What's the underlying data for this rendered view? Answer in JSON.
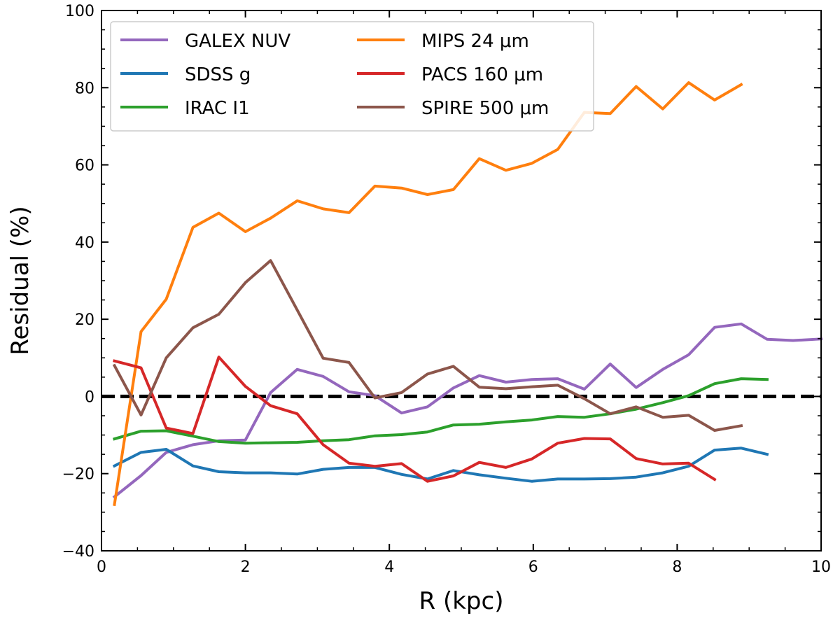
{
  "chart_data": {
    "type": "line",
    "title": "",
    "xlabel": "R (kpc)",
    "ylabel": "Residual (%)",
    "xlim": [
      0,
      10
    ],
    "ylim": [
      -40,
      100
    ],
    "xticks": [
      0,
      2,
      4,
      6,
      8,
      10
    ],
    "yticks": [
      -40,
      -20,
      0,
      20,
      40,
      60,
      80,
      100
    ],
    "xtick_labels": [
      "0",
      "2",
      "4",
      "6",
      "8",
      "10"
    ],
    "ytick_labels": [
      "−40",
      "−20",
      "0",
      "20",
      "40",
      "60",
      "80",
      "100"
    ],
    "grid": false,
    "legend_position": "upper-left",
    "reference_line": {
      "y": 0,
      "style": "dashed",
      "color": "#000000"
    },
    "series": [
      {
        "name": "GALEX NUV",
        "color": "#9467bd",
        "x": [
          0.18,
          0.55,
          0.9,
          1.27,
          1.63,
          2.0,
          2.35,
          2.72,
          3.08,
          3.44,
          3.8,
          4.17,
          4.53,
          4.89,
          5.25,
          5.62,
          5.98,
          6.34,
          6.71,
          7.07,
          7.43,
          7.8,
          8.16,
          8.52,
          8.89,
          9.25,
          9.61,
          10.0
        ],
        "y": [
          -26,
          -20.5,
          -14.5,
          -12.5,
          -11.5,
          -11.3,
          1,
          7,
          5.2,
          1.2,
          0.2,
          -4.3,
          -2.7,
          2.2,
          5.4,
          3.7,
          4.4,
          4.6,
          1.9,
          8.4,
          2.3,
          7,
          10.8,
          17.9,
          18.8,
          14.8,
          14.5,
          14.9
        ]
      },
      {
        "name": "SDSS g",
        "color": "#1f77b4",
        "x": [
          0.18,
          0.55,
          0.9,
          1.27,
          1.63,
          2.0,
          2.35,
          2.72,
          3.08,
          3.44,
          3.8,
          4.17,
          4.53,
          4.89,
          5.25,
          5.62,
          5.98,
          6.34,
          6.71,
          7.07,
          7.43,
          7.8,
          8.16,
          8.52,
          8.89,
          9.25
        ],
        "y": [
          -18,
          -14.5,
          -13.7,
          -18,
          -19.5,
          -19.8,
          -19.8,
          -20.1,
          -18.9,
          -18.4,
          -18.4,
          -20.2,
          -21.4,
          -19.2,
          -20.3,
          -21.2,
          -22,
          -21.4,
          -21.4,
          -21.3,
          -20.9,
          -19.8,
          -18.1,
          -13.9,
          -13.4,
          -15
        ]
      },
      {
        "name": "IRAC I1",
        "color": "#2ca02c",
        "x": [
          0.18,
          0.55,
          0.9,
          1.27,
          1.63,
          2.0,
          2.35,
          2.72,
          3.08,
          3.44,
          3.8,
          4.17,
          4.53,
          4.89,
          5.25,
          5.62,
          5.98,
          6.34,
          6.71,
          7.07,
          7.43,
          7.8,
          8.16,
          8.52,
          8.89,
          9.25
        ],
        "y": [
          -11,
          -9,
          -8.9,
          -10.3,
          -11.7,
          -12.1,
          -12,
          -11.9,
          -11.5,
          -11.2,
          -10.2,
          -9.9,
          -9.2,
          -7.4,
          -7.2,
          -6.6,
          -6.1,
          -5.2,
          -5.4,
          -4.5,
          -3.3,
          -1.6,
          0.2,
          3.3,
          4.6,
          4.4
        ]
      },
      {
        "name": "MIPS 24 μm",
        "color": "#ff7f0e",
        "x": [
          0.18,
          0.55,
          0.9,
          1.27,
          1.63,
          2.0,
          2.35,
          2.72,
          3.08,
          3.44,
          3.8,
          4.17,
          4.53,
          4.89,
          5.25,
          5.62,
          5.98,
          6.34,
          6.71,
          7.07,
          7.43,
          7.8,
          8.16,
          8.52,
          8.89
        ],
        "y": [
          -28,
          16.8,
          25.2,
          43.8,
          47.5,
          42.7,
          46.2,
          50.7,
          48.6,
          47.6,
          54.5,
          54,
          52.3,
          53.6,
          61.6,
          58.6,
          60.4,
          64,
          73.6,
          73.3,
          80.3,
          74.5,
          81.3,
          76.8,
          80.8
        ]
      },
      {
        "name": "PACS 160 μm",
        "color": "#d62728",
        "x": [
          0.18,
          0.55,
          0.9,
          1.27,
          1.63,
          2.0,
          2.35,
          2.72,
          3.08,
          3.44,
          3.8,
          4.17,
          4.53,
          4.89,
          5.25,
          5.62,
          5.98,
          6.34,
          6.71,
          7.07,
          7.43,
          7.8,
          8.16,
          8.52
        ],
        "y": [
          9.2,
          7.4,
          -8.2,
          -9.6,
          10.2,
          2.6,
          -2.4,
          -4.5,
          -12.5,
          -17.3,
          -18.1,
          -17.4,
          -22,
          -20.6,
          -17.1,
          -18.4,
          -16.2,
          -12.1,
          -10.9,
          -11,
          -16.1,
          -17.5,
          -17.3,
          -21.5
        ]
      },
      {
        "name": "SPIRE 500 μm",
        "color": "#8c564b",
        "x": [
          0.18,
          0.55,
          0.9,
          1.27,
          1.63,
          2.0,
          2.35,
          2.72,
          3.08,
          3.44,
          3.8,
          4.17,
          4.53,
          4.89,
          5.25,
          5.62,
          5.98,
          6.34,
          6.71,
          7.07,
          7.43,
          7.8,
          8.16,
          8.52,
          8.89
        ],
        "y": [
          8,
          -4.8,
          10,
          17.8,
          21.3,
          29.5,
          35.2,
          22.4,
          9.9,
          8.8,
          -0.4,
          1,
          5.8,
          7.8,
          2.4,
          2,
          2.5,
          2.9,
          -0.6,
          -4.5,
          -2.7,
          -5.4,
          -4.9,
          -8.8,
          -7.6
        ]
      }
    ]
  }
}
